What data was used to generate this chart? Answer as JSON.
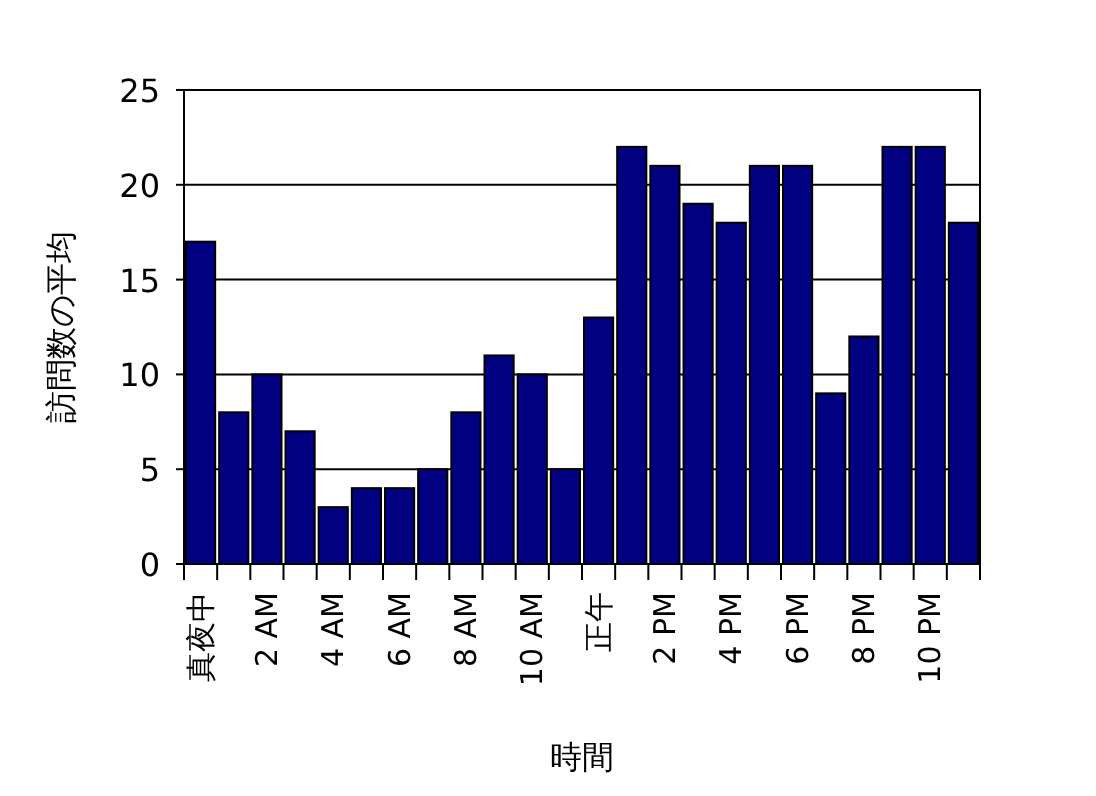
{
  "chart_data": {
    "type": "bar",
    "xlabel": "時間",
    "ylabel": "訪問数の平均",
    "categories": [
      "真夜中",
      null,
      "2 AM",
      null,
      "4 AM",
      null,
      "6 AM",
      null,
      "8 AM",
      null,
      "10 AM",
      null,
      "正午",
      null,
      "2 PM",
      null,
      "4 PM",
      null,
      "6 PM",
      null,
      "8 PM",
      null,
      "10 PM",
      null
    ],
    "values": [
      17,
      8,
      10,
      7,
      3,
      4,
      4,
      5,
      8,
      11,
      10,
      5,
      13,
      22,
      21,
      19,
      18,
      21,
      21,
      9,
      12,
      22,
      22,
      18
    ],
    "color": "#000080",
    "ylim": [
      0,
      25
    ],
    "yticks": [
      0,
      5,
      10,
      15,
      20,
      25
    ],
    "grid": "y"
  }
}
